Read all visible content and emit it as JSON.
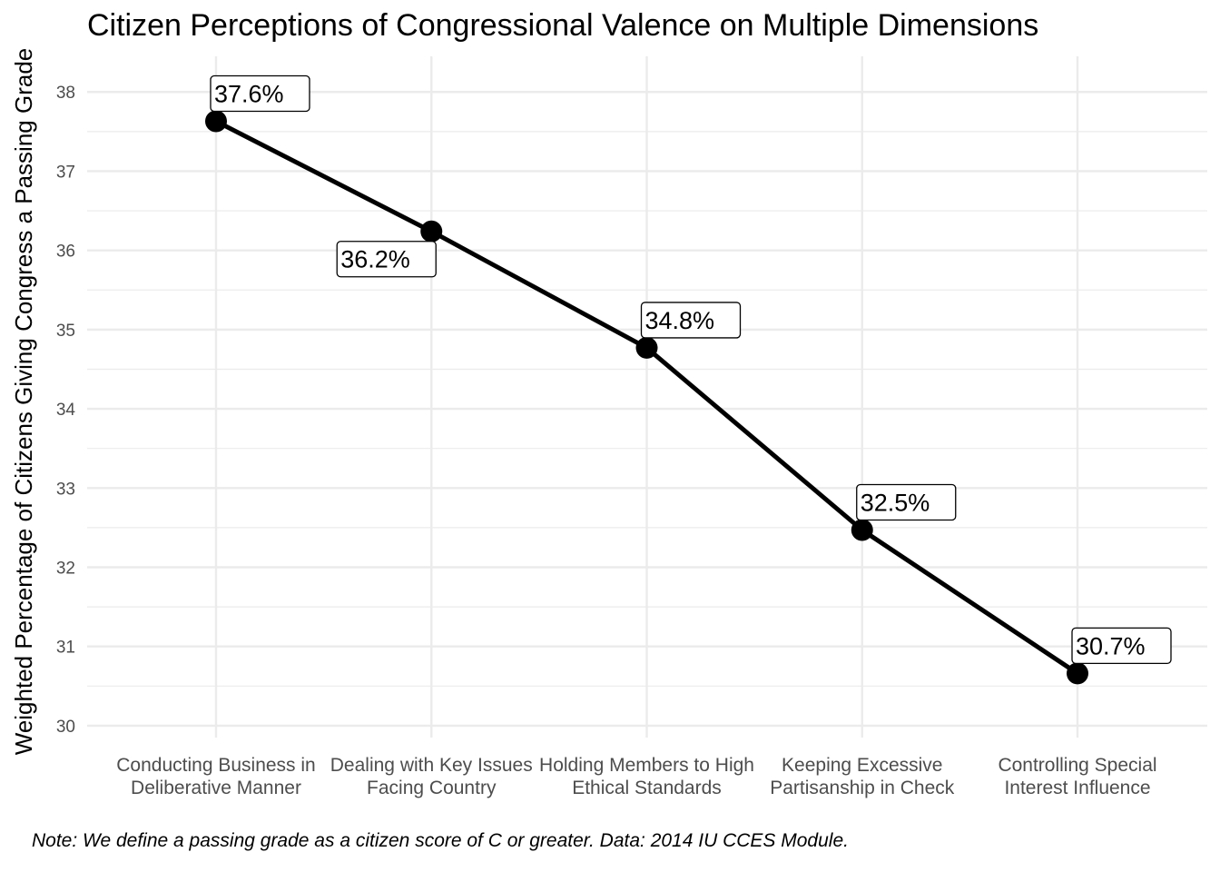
{
  "chart_data": {
    "type": "line",
    "title": "Citizen Perceptions of Congressional Valence on Multiple Dimensions",
    "xlabel": "",
    "ylabel": "Weighted Percentage of Citizens Giving Congress a Passing Grade",
    "caption": "Note: We define a passing grade as a citizen score of C or greater. Data: 2014 IU CCES Module.",
    "categories": [
      [
        "Conducting Business in",
        "Deliberative Manner"
      ],
      [
        "Dealing with Key Issues",
        "Facing Country"
      ],
      [
        "Holding Members to High",
        "Ethical Standards"
      ],
      [
        "Keeping Excessive",
        "Partisanship in Check"
      ],
      [
        "Controlling Special",
        "Interest Influence"
      ]
    ],
    "values": [
      37.63,
      36.24,
      34.77,
      32.47,
      30.66
    ],
    "data_labels": [
      "37.6%",
      "36.2%",
      "34.8%",
      "32.5%",
      "30.7%"
    ],
    "label_placement": [
      "above",
      "below",
      "above",
      "above",
      "above"
    ],
    "yticks": [
      "30",
      "31",
      "32",
      "33",
      "34",
      "35",
      "36",
      "37",
      "38"
    ],
    "ylim": [
      29.85,
      38.45
    ],
    "grid": true,
    "colors": {
      "line": "#000000",
      "point": "#000000",
      "grid": "#ebebeb"
    }
  }
}
